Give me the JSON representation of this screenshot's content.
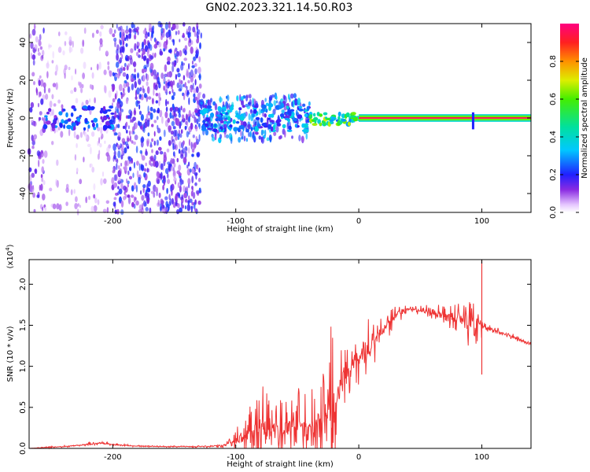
{
  "title": "GN02.2023.321.14.50.R03",
  "chart_data": [
    {
      "type": "heatmap",
      "title": "GN02.2023.321.14.50.R03",
      "xlabel": "Height of straight line (km)",
      "ylabel": "Frequency (Hz)",
      "xlim": [
        -268,
        140
      ],
      "ylim": [
        -50,
        50
      ],
      "xticks": [
        -200,
        -100,
        0,
        100
      ],
      "xtick_labels": [
        "-200",
        "-100",
        "0",
        "100"
      ],
      "yticks": [
        -40,
        -20,
        0,
        20,
        40
      ],
      "ytick_labels": [
        "-40",
        "-20",
        "0",
        "20",
        "40"
      ],
      "grid": false,
      "colorbar": {
        "label": "Normalized spectral amplitude",
        "range": [
          0,
          1
        ],
        "ticks": [
          0.0,
          0.2,
          0.4,
          0.6,
          0.8
        ],
        "tick_labels": [
          "0.0",
          "0.2",
          "0.4",
          "0.6",
          "0.8"
        ]
      },
      "regions": [
        {
          "x": [
            -268,
            -255
          ],
          "freq_halfwidth": 50,
          "amplitude": 0.15,
          "density": "medium"
        },
        {
          "x": [
            -255,
            -200
          ],
          "freq_halfwidth": 50,
          "amplitude": 0.08,
          "density": "sparse"
        },
        {
          "x": [
            -200,
            -128
          ],
          "freq_halfwidth": 50,
          "amplitude": 0.2,
          "density": "dense"
        },
        {
          "x": [
            -128,
            -40
          ],
          "freq_halfwidth": 12,
          "amplitude": 0.3,
          "density": "dense"
        }
      ],
      "core_band": [
        {
          "x": [
            -255,
            -200
          ],
          "freq_halfwidth": 6,
          "amplitude": 0.22
        },
        {
          "x": [
            -128,
            -40
          ],
          "freq_halfwidth": 7,
          "amplitude": 0.28
        },
        {
          "x": [
            -40,
            0
          ],
          "freq_halfwidth": 3,
          "amplitude": 0.5
        },
        {
          "x": [
            0,
            140
          ],
          "freq_halfwidth": 2,
          "amplitude": 0.95
        }
      ]
    },
    {
      "type": "line",
      "xlabel": "Height of straight line (km)",
      "ylabel": "SNR (10 * v/v)",
      "y_multiplier": "(x10^4)",
      "xlim": [
        -268,
        140
      ],
      "ylim": [
        0,
        23000
      ],
      "xticks": [
        -200,
        -100,
        0,
        100
      ],
      "xtick_labels": [
        "-200",
        "-100",
        "0",
        "100"
      ],
      "yticks": [
        0,
        5000,
        10000,
        15000,
        20000
      ],
      "ytick_labels": [
        "0.0",
        "0.5",
        "1.0",
        "1.5",
        "2.0"
      ],
      "grid": false,
      "series": [
        {
          "color": "#ee3333",
          "x": [
            -268,
            -250,
            -230,
            -210,
            -200,
            -180,
            -160,
            -140,
            -120,
            -110,
            -100,
            -90,
            -80,
            -70,
            -60,
            -50,
            -40,
            -30,
            -25,
            -20,
            -15,
            -10,
            -5,
            0,
            10,
            20,
            30,
            40,
            50,
            60,
            70,
            80,
            90,
            95,
            98,
            100,
            102,
            110,
            120,
            130,
            140
          ],
          "y": [
            0,
            150,
            350,
            650,
            450,
            280,
            230,
            220,
            250,
            400,
            1000,
            2000,
            2600,
            2300,
            2700,
            2600,
            2400,
            3200,
            4000,
            5200,
            7000,
            9500,
            10500,
            11000,
            12500,
            14500,
            16300,
            17000,
            16800,
            16500,
            16200,
            15800,
            15500,
            15200,
            15000,
            15200,
            14800,
            14400,
            13900,
            13300,
            12700
          ],
          "noise": [
            0,
            80,
            100,
            150,
            100,
            60,
            60,
            60,
            100,
            200,
            900,
            2200,
            3500,
            2500,
            3500,
            3000,
            2600,
            4000,
            6000,
            7000,
            4000,
            3500,
            2500,
            2200,
            1800,
            1200,
            700,
            300,
            350,
            600,
            900,
            1200,
            1800,
            2000,
            2000,
            1200,
            400,
            300,
            200,
            200,
            200
          ]
        }
      ],
      "annotations": [
        {
          "x": 100,
          "y_low": 9000,
          "y_high": 23000,
          "note": "spike"
        }
      ]
    }
  ]
}
